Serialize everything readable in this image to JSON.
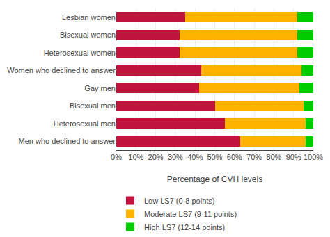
{
  "chart_data": {
    "type": "bar",
    "orientation": "horizontal",
    "stacked": true,
    "categories": [
      "Lesbian women",
      "Bisexual women",
      "Heterosexual women",
      "Women who declined to answer",
      "Gay men",
      "Bisexual men",
      "Heterosexual men",
      "Men who declined to answer"
    ],
    "series": [
      {
        "name": "Low LS7 (0-8 points)",
        "color": "#C0143C",
        "values": [
          35,
          32,
          32,
          43,
          42,
          50,
          55,
          63
        ]
      },
      {
        "name": "Moderate LS7 (9-11 points)",
        "color": "#FFB300",
        "values": [
          57,
          60,
          60,
          51,
          51,
          45,
          41,
          33
        ]
      },
      {
        "name": "High LS7 (12-14 points)",
        "color": "#00CC00",
        "values": [
          8,
          8,
          8,
          6,
          7,
          5,
          4,
          4
        ]
      }
    ],
    "xlabel": "Percentage of CVH levels",
    "xlim": [
      0,
      100
    ],
    "xticks": [
      {
        "value": 0,
        "label": "0%"
      },
      {
        "value": 10,
        "label": "10%"
      },
      {
        "value": 20,
        "label": "20%"
      },
      {
        "value": 30,
        "label": "30%"
      },
      {
        "value": 40,
        "label": "40%"
      },
      {
        "value": 50,
        "label": "50%"
      },
      {
        "value": 60,
        "label": "60%"
      },
      {
        "value": 70,
        "label": "70%"
      },
      {
        "value": 80,
        "label": "80%"
      },
      {
        "value": 90,
        "label": "90%"
      },
      {
        "value": 100,
        "label": "100%"
      }
    ],
    "grid": true,
    "legend": "bottom"
  }
}
